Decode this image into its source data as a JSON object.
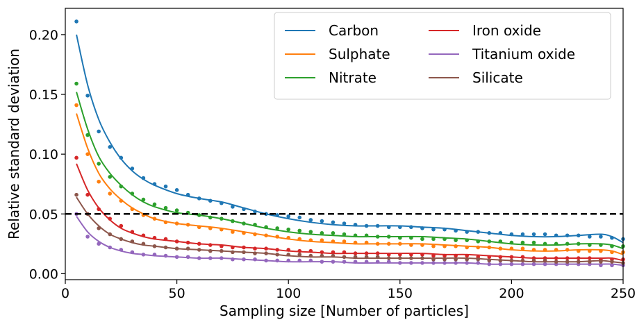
{
  "chart_data": {
    "type": "line",
    "title": "",
    "xlabel": "Sampling size [Number of particles]",
    "ylabel": "Relative standard deviation",
    "xlim": [
      0,
      250
    ],
    "ylim": [
      -0.005,
      0.222
    ],
    "xticks": [
      0,
      50,
      100,
      150,
      200,
      250
    ],
    "xtick_labels": [
      "0",
      "50",
      "100",
      "150",
      "200",
      "250"
    ],
    "yticks": [
      0.0,
      0.05,
      0.1,
      0.15,
      0.2
    ],
    "ytick_labels": [
      "0.00",
      "0.05",
      "0.10",
      "0.15",
      "0.20"
    ],
    "grid": false,
    "legend_position": "top-right",
    "threshold": {
      "y": 0.05,
      "style": "dashed",
      "color": "#000000"
    },
    "points_x": [
      5,
      10,
      15,
      20,
      25,
      30,
      35,
      40,
      45,
      50,
      55,
      60,
      65,
      70,
      75,
      80,
      85,
      90,
      95,
      100,
      105,
      110,
      115,
      120,
      125,
      130,
      135,
      140,
      145,
      150,
      155,
      160,
      165,
      170,
      175,
      180,
      185,
      190,
      195,
      200,
      205,
      210,
      215,
      220,
      225,
      230,
      235,
      240,
      245,
      250
    ],
    "series": [
      {
        "name": "Carbon",
        "color": "#1f77b4",
        "curve_x": [
          5,
          10,
          15,
          20,
          25,
          30,
          35,
          40,
          50,
          60,
          70,
          80,
          90,
          100,
          110,
          120,
          130,
          140,
          150,
          160,
          170,
          180,
          190,
          200,
          210,
          220,
          230,
          240,
          245,
          250
        ],
        "curve_y": [
          0.2,
          0.158,
          0.129,
          0.11,
          0.096,
          0.086,
          0.079,
          0.074,
          0.067,
          0.063,
          0.06,
          0.055,
          0.05,
          0.046,
          0.043,
          0.041,
          0.04,
          0.04,
          0.04,
          0.039,
          0.038,
          0.036,
          0.034,
          0.032,
          0.031,
          0.031,
          0.032,
          0.033,
          0.031,
          0.026
        ],
        "points_y": [
          0.211,
          0.149,
          0.119,
          0.106,
          0.097,
          0.088,
          0.08,
          0.075,
          0.073,
          0.07,
          0.066,
          0.063,
          0.061,
          0.059,
          0.056,
          0.054,
          0.052,
          0.05,
          0.049,
          0.048,
          0.047,
          0.045,
          0.044,
          0.043,
          0.042,
          0.041,
          0.04,
          0.04,
          0.039,
          0.039,
          0.039,
          0.038,
          0.037,
          0.037,
          0.036,
          0.035,
          0.035,
          0.034,
          0.034,
          0.033,
          0.033,
          0.033,
          0.033,
          0.032,
          0.032,
          0.032,
          0.031,
          0.031,
          0.03,
          0.029
        ]
      },
      {
        "name": "Sulphate",
        "color": "#ff7f0e",
        "curve_x": [
          5,
          10,
          15,
          20,
          25,
          30,
          35,
          40,
          50,
          60,
          70,
          80,
          90,
          100,
          110,
          120,
          130,
          140,
          150,
          160,
          170,
          180,
          190,
          200,
          210,
          220,
          230,
          240,
          245,
          250
        ],
        "curve_y": [
          0.134,
          0.105,
          0.084,
          0.071,
          0.062,
          0.055,
          0.05,
          0.046,
          0.042,
          0.04,
          0.038,
          0.035,
          0.032,
          0.029,
          0.027,
          0.026,
          0.025,
          0.025,
          0.025,
          0.025,
          0.024,
          0.023,
          0.022,
          0.02,
          0.019,
          0.019,
          0.02,
          0.02,
          0.019,
          0.016
        ],
        "points_y": [
          0.141,
          0.1,
          0.077,
          0.067,
          0.061,
          0.054,
          0.049,
          0.046,
          0.043,
          0.042,
          0.041,
          0.039,
          0.038,
          0.037,
          0.035,
          0.034,
          0.033,
          0.032,
          0.031,
          0.03,
          0.029,
          0.028,
          0.028,
          0.027,
          0.027,
          0.026,
          0.026,
          0.025,
          0.025,
          0.025,
          0.024,
          0.024,
          0.023,
          0.023,
          0.023,
          0.022,
          0.022,
          0.022,
          0.021,
          0.021,
          0.021,
          0.02,
          0.02,
          0.02,
          0.02,
          0.019,
          0.019,
          0.019,
          0.018,
          0.018
        ]
      },
      {
        "name": "Nitrate",
        "color": "#2ca02c",
        "curve_x": [
          5,
          10,
          15,
          20,
          25,
          30,
          35,
          40,
          50,
          60,
          70,
          80,
          90,
          100,
          110,
          120,
          130,
          140,
          150,
          160,
          170,
          180,
          190,
          200,
          210,
          220,
          230,
          240,
          245,
          250
        ],
        "curve_y": [
          0.152,
          0.121,
          0.098,
          0.084,
          0.074,
          0.066,
          0.06,
          0.056,
          0.051,
          0.049,
          0.046,
          0.042,
          0.038,
          0.035,
          0.033,
          0.032,
          0.031,
          0.031,
          0.031,
          0.031,
          0.03,
          0.029,
          0.027,
          0.025,
          0.024,
          0.024,
          0.025,
          0.025,
          0.024,
          0.021
        ],
        "points_y": [
          0.159,
          0.116,
          0.092,
          0.081,
          0.073,
          0.067,
          0.062,
          0.058,
          0.055,
          0.053,
          0.051,
          0.049,
          0.047,
          0.046,
          0.044,
          0.042,
          0.041,
          0.039,
          0.038,
          0.037,
          0.036,
          0.035,
          0.034,
          0.034,
          0.033,
          0.032,
          0.032,
          0.031,
          0.031,
          0.03,
          0.03,
          0.029,
          0.029,
          0.029,
          0.028,
          0.028,
          0.027,
          0.027,
          0.027,
          0.026,
          0.026,
          0.026,
          0.025,
          0.025,
          0.025,
          0.025,
          0.024,
          0.024,
          0.023,
          0.023
        ]
      },
      {
        "name": "Iron oxide",
        "color": "#d62728",
        "curve_x": [
          5,
          10,
          15,
          20,
          25,
          30,
          35,
          40,
          50,
          60,
          70,
          80,
          90,
          100,
          110,
          120,
          130,
          140,
          150,
          160,
          170,
          180,
          190,
          200,
          210,
          220,
          230,
          240,
          245,
          250
        ],
        "curve_y": [
          0.092,
          0.07,
          0.055,
          0.045,
          0.038,
          0.034,
          0.031,
          0.029,
          0.027,
          0.025,
          0.024,
          0.022,
          0.021,
          0.019,
          0.018,
          0.017,
          0.017,
          0.017,
          0.017,
          0.017,
          0.016,
          0.016,
          0.015,
          0.014,
          0.013,
          0.013,
          0.013,
          0.013,
          0.013,
          0.011
        ],
        "points_y": [
          0.097,
          0.066,
          0.054,
          0.046,
          0.04,
          0.035,
          0.032,
          0.03,
          0.029,
          0.027,
          0.026,
          0.025,
          0.024,
          0.023,
          0.022,
          0.022,
          0.021,
          0.021,
          0.02,
          0.02,
          0.019,
          0.019,
          0.018,
          0.018,
          0.018,
          0.017,
          0.017,
          0.017,
          0.016,
          0.016,
          0.016,
          0.016,
          0.015,
          0.015,
          0.015,
          0.015,
          0.014,
          0.014,
          0.014,
          0.014,
          0.014,
          0.013,
          0.013,
          0.013,
          0.013,
          0.013,
          0.013,
          0.012,
          0.012,
          0.012
        ]
      },
      {
        "name": "Titanium oxide",
        "color": "#9467bd",
        "curve_x": [
          5,
          10,
          15,
          20,
          25,
          30,
          35,
          40,
          50,
          60,
          70,
          80,
          90,
          100,
          110,
          120,
          130,
          140,
          150,
          160,
          170,
          180,
          190,
          200,
          210,
          220,
          230,
          240,
          245,
          250
        ],
        "curve_y": [
          0.048,
          0.035,
          0.027,
          0.022,
          0.019,
          0.017,
          0.016,
          0.015,
          0.014,
          0.013,
          0.013,
          0.012,
          0.011,
          0.01,
          0.01,
          0.01,
          0.009,
          0.009,
          0.009,
          0.009,
          0.009,
          0.009,
          0.008,
          0.008,
          0.008,
          0.008,
          0.008,
          0.008,
          0.008,
          0.007
        ],
        "points_y": [
          0.05,
          0.031,
          0.025,
          0.022,
          0.02,
          0.018,
          0.016,
          0.016,
          0.015,
          0.014,
          0.014,
          0.013,
          0.013,
          0.013,
          0.012,
          0.012,
          0.012,
          0.011,
          0.011,
          0.011,
          0.011,
          0.011,
          0.01,
          0.01,
          0.01,
          0.01,
          0.01,
          0.01,
          0.01,
          0.009,
          0.009,
          0.009,
          0.009,
          0.009,
          0.009,
          0.009,
          0.009,
          0.008,
          0.008,
          0.008,
          0.008,
          0.008,
          0.008,
          0.008,
          0.008,
          0.008,
          0.008,
          0.007,
          0.007,
          0.007
        ]
      },
      {
        "name": "Silicate",
        "color": "#8c564b",
        "curve_x": [
          5,
          10,
          15,
          20,
          25,
          30,
          35,
          40,
          50,
          60,
          70,
          80,
          90,
          100,
          110,
          120,
          130,
          140,
          150,
          160,
          170,
          180,
          190,
          200,
          210,
          220,
          230,
          240,
          245,
          250
        ],
        "curve_y": [
          0.064,
          0.05,
          0.04,
          0.033,
          0.029,
          0.026,
          0.024,
          0.023,
          0.021,
          0.02,
          0.019,
          0.018,
          0.017,
          0.015,
          0.014,
          0.014,
          0.013,
          0.013,
          0.013,
          0.013,
          0.013,
          0.013,
          0.012,
          0.011,
          0.01,
          0.01,
          0.01,
          0.011,
          0.01,
          0.009
        ],
        "points_y": [
          0.066,
          0.05,
          0.038,
          0.033,
          0.029,
          0.027,
          0.025,
          0.023,
          0.022,
          0.021,
          0.021,
          0.02,
          0.019,
          0.019,
          0.018,
          0.018,
          0.017,
          0.017,
          0.016,
          0.016,
          0.016,
          0.015,
          0.015,
          0.015,
          0.014,
          0.014,
          0.014,
          0.014,
          0.013,
          0.013,
          0.013,
          0.013,
          0.012,
          0.012,
          0.012,
          0.012,
          0.012,
          0.011,
          0.011,
          0.011,
          0.011,
          0.011,
          0.011,
          0.01,
          0.01,
          0.01,
          0.01,
          0.01,
          0.01,
          0.009
        ]
      }
    ]
  }
}
